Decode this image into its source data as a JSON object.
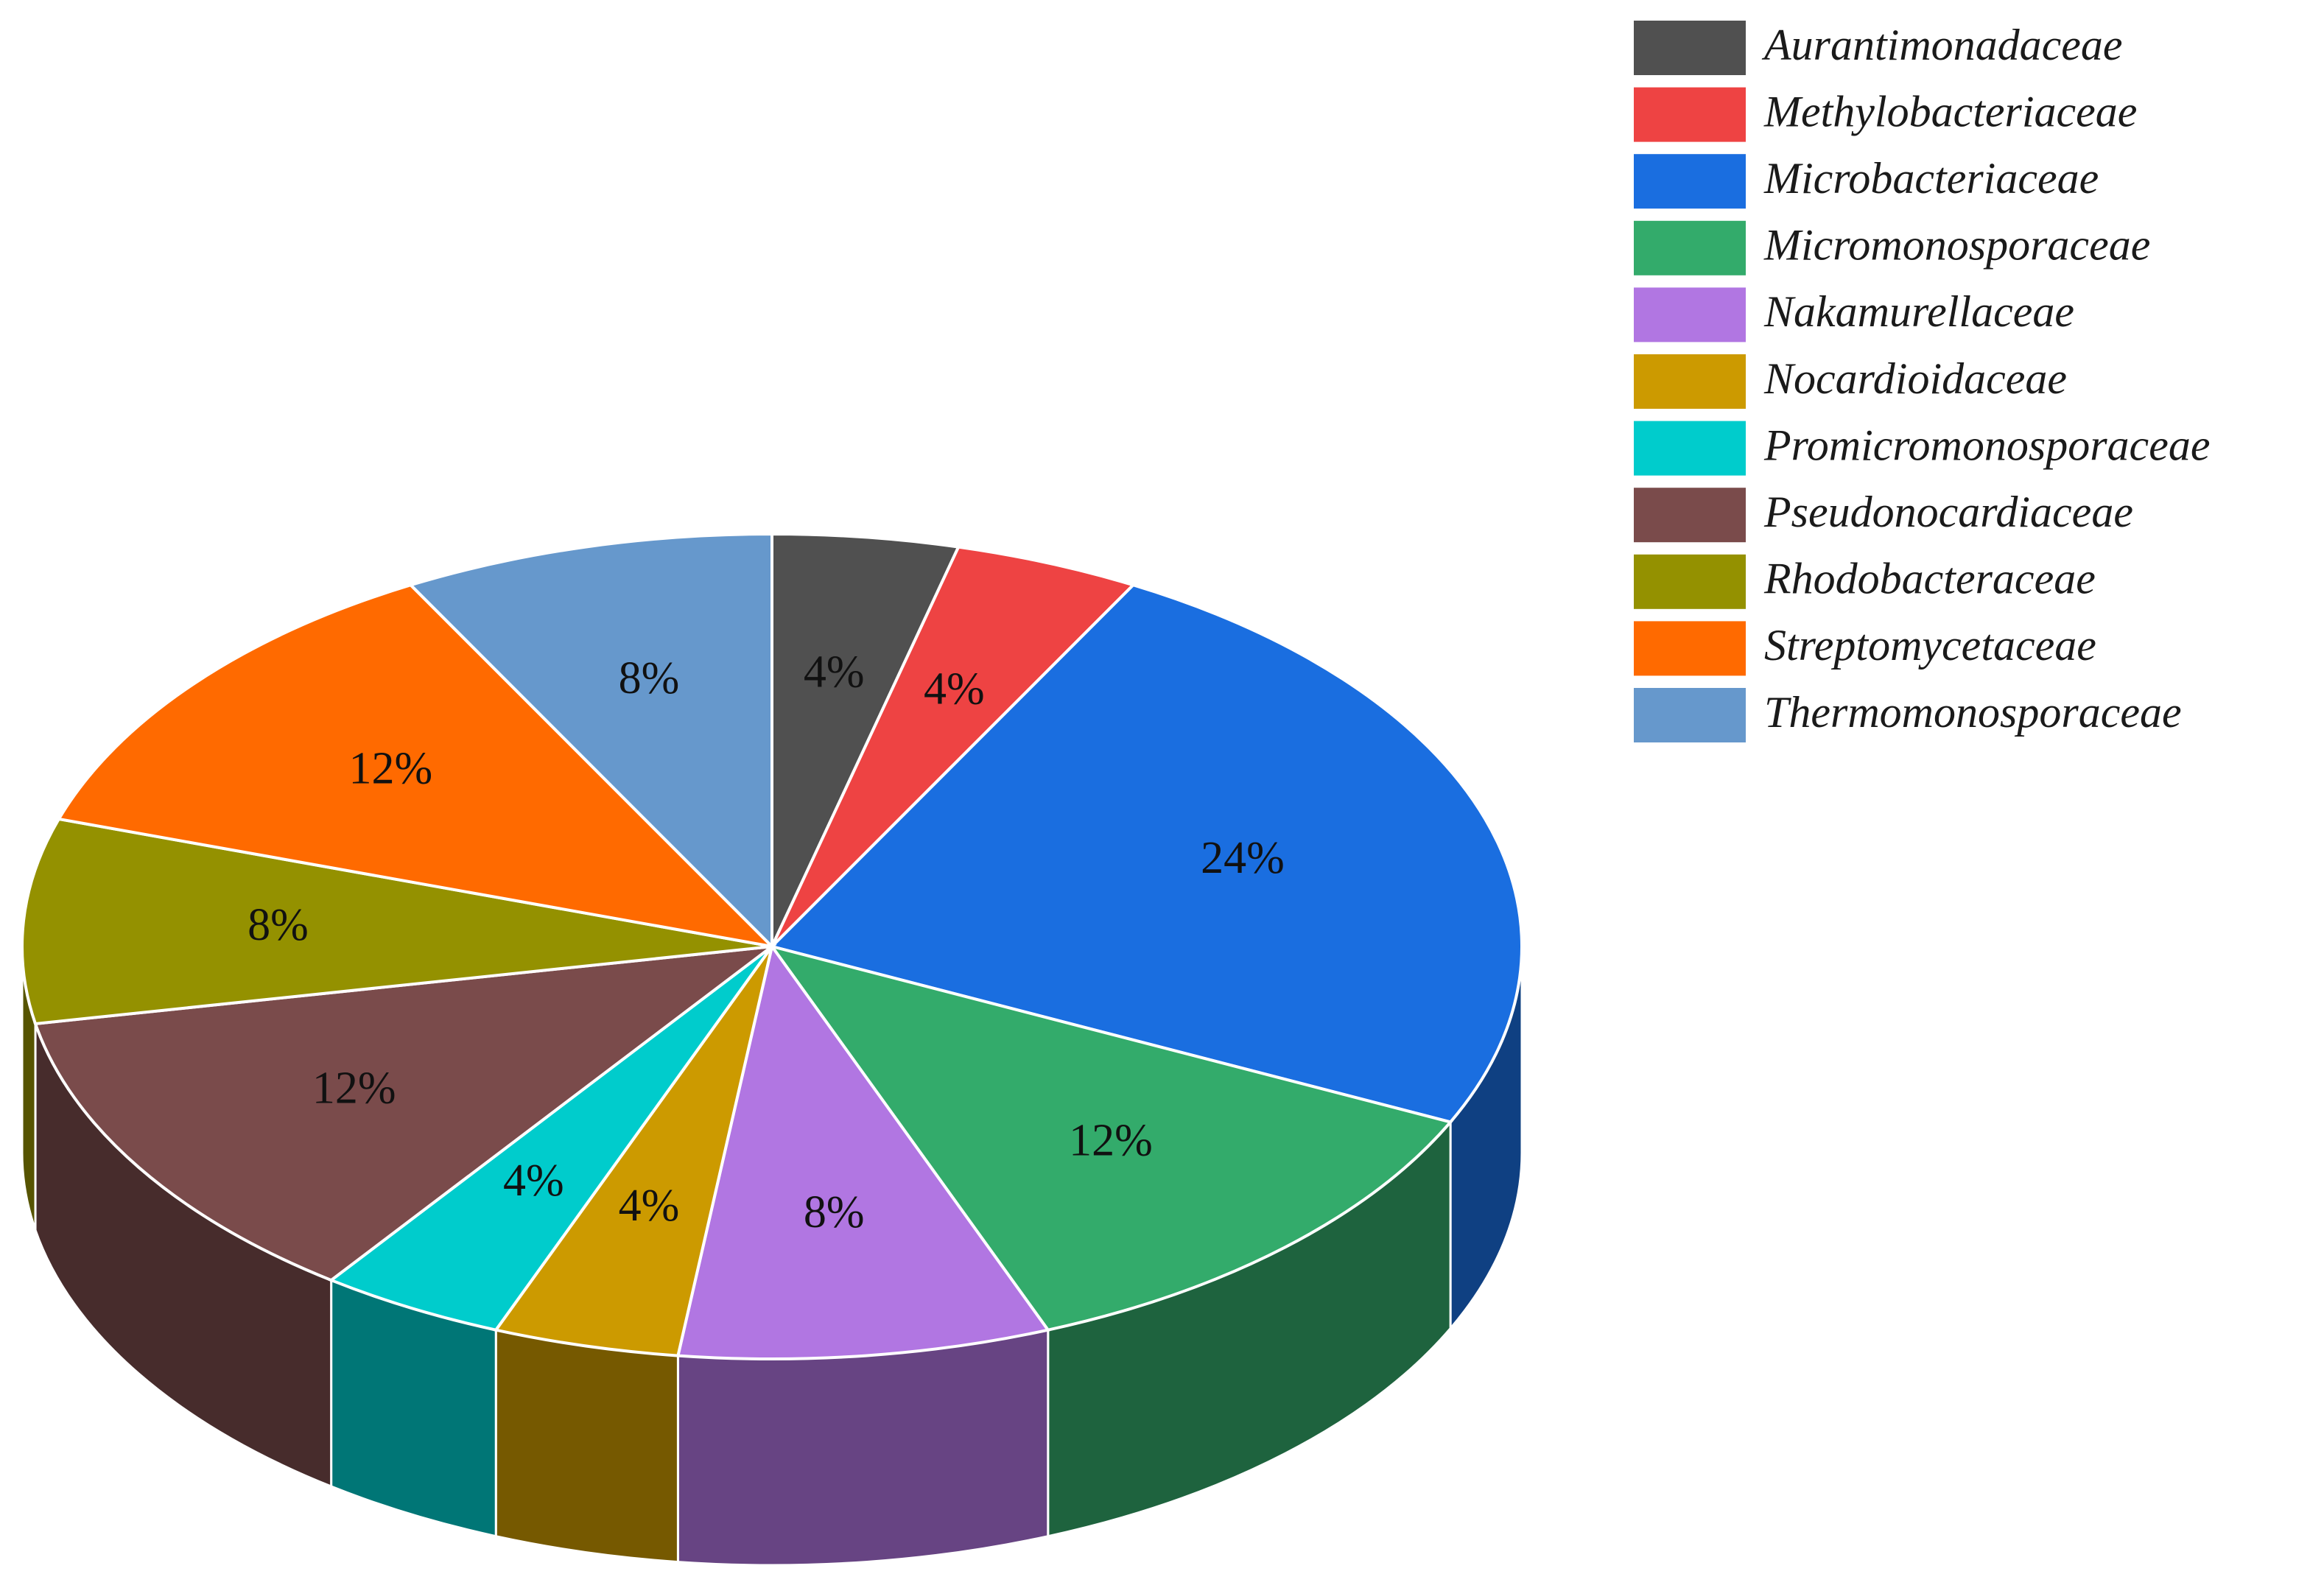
{
  "chart_data": {
    "type": "pie",
    "style": "3d",
    "legend_position": "top-right",
    "slices": [
      {
        "name": "Aurantimonadaceae",
        "value": 4,
        "label": "4%",
        "color": "#505050"
      },
      {
        "name": "Methylobacteriaceae",
        "value": 4,
        "label": "4%",
        "color": "#ee4343"
      },
      {
        "name": "Microbacteriaceae",
        "value": 24,
        "label": "24%",
        "color": "#1a6ee0"
      },
      {
        "name": "Micromonosporaceae",
        "value": 12,
        "label": "12%",
        "color": "#33ab6b"
      },
      {
        "name": "Nakamurellaceae",
        "value": 8,
        "label": "8%",
        "color": "#b176e2"
      },
      {
        "name": "Nocardioidaceae",
        "value": 4,
        "label": "4%",
        "color": "#cc9a00"
      },
      {
        "name": "Promicromonosporaceae",
        "value": 4,
        "label": "4%",
        "color": "#00cccc"
      },
      {
        "name": "Pseudonocardiaceae",
        "value": 12,
        "label": "12%",
        "color": "#7a4b4b"
      },
      {
        "name": "Rhodobacteraceae",
        "value": 8,
        "label": "8%",
        "color": "#949100"
      },
      {
        "name": "Streptomycetaceae",
        "value": 12,
        "label": "12%",
        "color": "#ff6a00"
      },
      {
        "name": "Thermomonosporaceae",
        "value": 8,
        "label": "8%",
        "color": "#6698cc"
      }
    ]
  }
}
